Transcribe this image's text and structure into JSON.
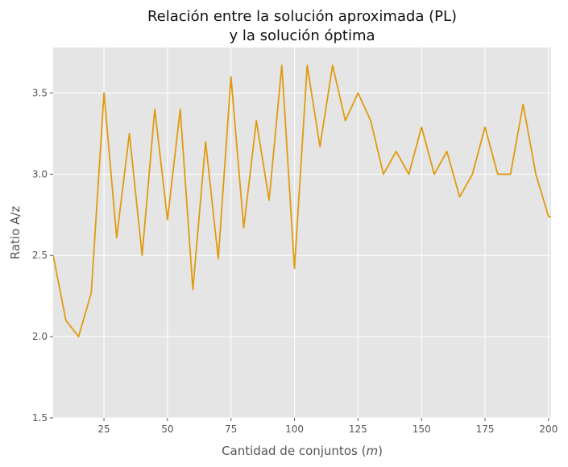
{
  "chart_data": {
    "type": "line",
    "title_line1": "Relación entre la solución aproximada (PL)",
    "title_line2": "y la solución óptima",
    "xlabel_prefix": "Cantidad de conjuntos (",
    "xlabel_var": "m",
    "xlabel_suffix": ")",
    "ylabel": "Ratio A/z",
    "xlim": [
      5,
      201
    ],
    "ylim": [
      1.5,
      3.78
    ],
    "xticks": [
      25,
      50,
      75,
      100,
      125,
      150,
      175,
      200
    ],
    "yticks": [
      "1.5",
      "2.0",
      "2.5",
      "3.0",
      "3.5"
    ],
    "grid": true,
    "background": "#e5e5e5",
    "line_color": "#e09b0e",
    "series": [
      {
        "x": [
          5,
          10,
          15,
          20,
          25,
          30,
          35,
          40,
          45,
          50,
          55,
          60,
          65,
          70,
          75,
          80,
          85,
          90,
          95,
          100,
          105,
          110,
          115,
          120,
          125,
          130,
          135,
          140,
          145,
          150,
          155,
          160,
          165,
          170,
          175,
          180,
          185,
          190,
          195,
          200,
          205
        ],
        "values": [
          2.5,
          2.1,
          2.0,
          2.27,
          3.5,
          2.61,
          3.25,
          2.5,
          3.4,
          2.72,
          3.4,
          2.29,
          3.2,
          2.48,
          3.6,
          2.67,
          3.33,
          2.84,
          3.67,
          2.42,
          3.67,
          3.17,
          3.67,
          3.33,
          3.5,
          3.33,
          3.0,
          3.14,
          3.0,
          3.29,
          3.0,
          3.14,
          2.86,
          3.0,
          3.29,
          3.0,
          3.0,
          3.43,
          3.0,
          2.74,
          2.73
        ]
      }
    ]
  }
}
